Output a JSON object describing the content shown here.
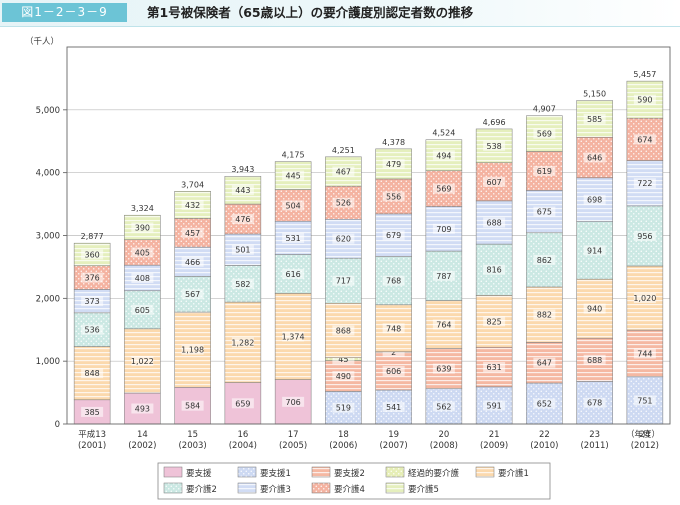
{
  "header": {
    "figure_no": "図1－2－3－9",
    "title": "第1号被保険者（65歳以上）の要介護度別認定者数の推移"
  },
  "chart_data": {
    "type": "bar",
    "stacked": true,
    "ylabel": "（千人）",
    "ylim": [
      0,
      6000
    ],
    "yticks": [
      "0",
      "1,000",
      "2,000",
      "3,000",
      "4,000",
      "5,000"
    ],
    "x_unit": "（年度）",
    "categories": [
      {
        "top": "平成13",
        "bottom": "(2001)"
      },
      {
        "top": "14",
        "bottom": "(2002)"
      },
      {
        "top": "15",
        "bottom": "(2003)"
      },
      {
        "top": "16",
        "bottom": "(2004)"
      },
      {
        "top": "17",
        "bottom": "(2005)"
      },
      {
        "top": "18",
        "bottom": "(2006)"
      },
      {
        "top": "19",
        "bottom": "(2007)"
      },
      {
        "top": "20",
        "bottom": "(2008)"
      },
      {
        "top": "21",
        "bottom": "(2009)"
      },
      {
        "top": "22",
        "bottom": "(2010)"
      },
      {
        "top": "23",
        "bottom": "(2011)"
      },
      {
        "top": "24",
        "bottom": "(2012)"
      }
    ],
    "totals": [
      "2,877",
      "3,324",
      "3,704",
      "3,943",
      "4,175",
      "4,251",
      "4,378",
      "4,524",
      "4,696",
      "4,907",
      "5,150",
      "5,457"
    ],
    "series": [
      {
        "name": "要支援",
        "color": "#efc3d8",
        "pattern": "plain",
        "values": [
          385,
          493,
          584,
          659,
          706,
          0,
          0,
          0,
          0,
          0,
          0,
          0
        ],
        "labels": [
          "385",
          "493",
          "584",
          "659",
          "706",
          "",
          "",
          "",
          "",
          "",
          "",
          ""
        ]
      },
      {
        "name": "要支援1",
        "color": "#cdd9f2",
        "pattern": "dots",
        "values": [
          0,
          0,
          0,
          0,
          0,
          519,
          541,
          562,
          591,
          652,
          678,
          751
        ],
        "labels": [
          "",
          "",
          "",
          "",
          "",
          "519",
          "541",
          "562",
          "591",
          "652",
          "678",
          "751"
        ]
      },
      {
        "name": "要支援2",
        "color": "#f5b8a2",
        "pattern": "hlines",
        "values": [
          0,
          0,
          0,
          0,
          0,
          490,
          606,
          639,
          631,
          647,
          688,
          744
        ],
        "labels": [
          "",
          "",
          "",
          "",
          "",
          "490",
          "606",
          "639",
          "631",
          "647",
          "688",
          "744"
        ]
      },
      {
        "name": "経過的要介護",
        "color": "#e6eeb6",
        "pattern": "dots",
        "values": [
          0,
          0,
          0,
          0,
          0,
          45,
          2,
          0,
          0,
          0,
          0,
          0
        ],
        "labels": [
          "",
          "",
          "",
          "",
          "",
          "45",
          "2",
          "",
          "",
          "",
          "",
          ""
        ]
      },
      {
        "name": "要介護1",
        "color": "#fbd9ad",
        "pattern": "hlines",
        "values": [
          848,
          1022,
          1198,
          1282,
          1374,
          868,
          748,
          764,
          825,
          882,
          940,
          1020
        ],
        "labels": [
          "848",
          "1,022",
          "1,198",
          "1,282",
          "1,374",
          "868",
          "748",
          "764",
          "825",
          "882",
          "940",
          "1,020"
        ]
      },
      {
        "name": "要介護2",
        "color": "#cbe8e3",
        "pattern": "dots",
        "values": [
          536,
          605,
          567,
          582,
          616,
          717,
          768,
          787,
          816,
          862,
          914,
          956
        ],
        "labels": [
          "536",
          "605",
          "567",
          "582",
          "616",
          "717",
          "768",
          "787",
          "816",
          "862",
          "914",
          "956"
        ]
      },
      {
        "name": "要介護3",
        "color": "#d1dcf4",
        "pattern": "hlines",
        "values": [
          373,
          408,
          466,
          501,
          531,
          620,
          679,
          709,
          688,
          675,
          698,
          722
        ],
        "labels": [
          "373",
          "408",
          "466",
          "501",
          "531",
          "620",
          "679",
          "709",
          "688",
          "675",
          "698",
          "722"
        ]
      },
      {
        "name": "要介護4",
        "color": "#f4b3a1",
        "pattern": "dots",
        "values": [
          376,
          405,
          457,
          476,
          504,
          526,
          556,
          569,
          607,
          619,
          646,
          674
        ],
        "labels": [
          "376",
          "405",
          "457",
          "476",
          "504",
          "526",
          "556",
          "569",
          "607",
          "619",
          "646",
          "674"
        ]
      },
      {
        "name": "要介護5",
        "color": "#e5efbd",
        "pattern": "hlines",
        "values": [
          360,
          390,
          432,
          443,
          445,
          467,
          479,
          494,
          538,
          569,
          585,
          590
        ],
        "labels": [
          "360",
          "390",
          "432",
          "443",
          "445",
          "467",
          "479",
          "494",
          "538",
          "569",
          "585",
          "590"
        ]
      }
    ],
    "legend_position": "bottom"
  }
}
